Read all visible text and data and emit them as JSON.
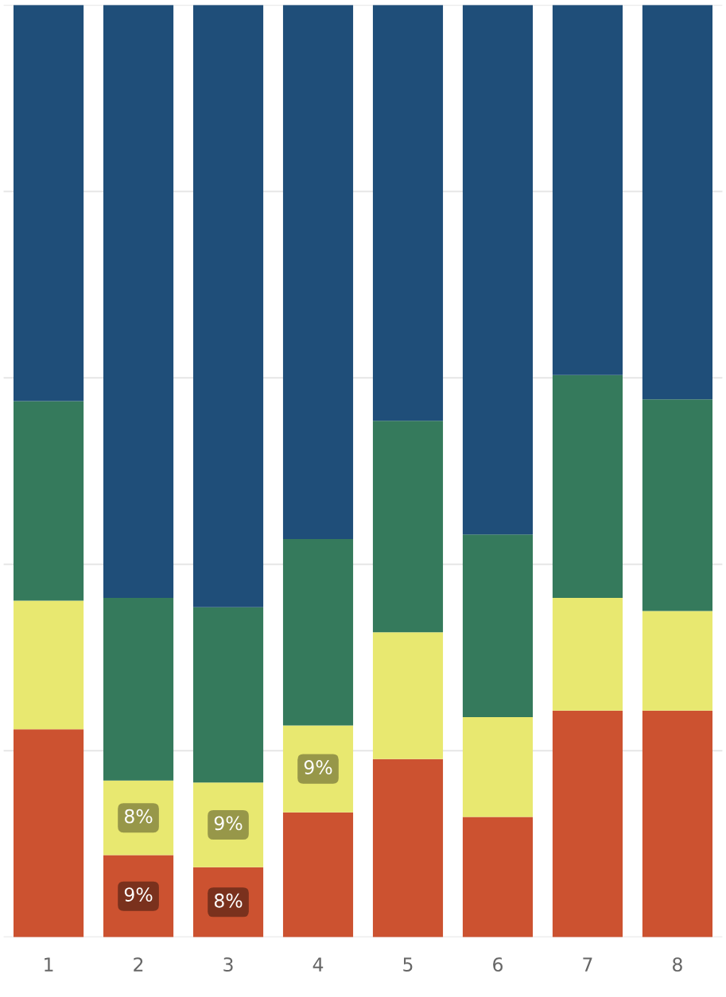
{
  "chart_data": {
    "type": "bar",
    "stacked": true,
    "grid": "y",
    "tick_labels": "x",
    "ylim": [
      0,
      100
    ],
    "yticks": [
      {
        "value": 0,
        "label": null
      },
      {
        "value": 20,
        "label": null
      },
      {
        "value": 40,
        "label": null
      },
      {
        "value": 60,
        "label": null
      },
      {
        "value": 80,
        "label": null
      },
      {
        "value": 100,
        "label": null
      }
    ],
    "categories": [
      "1",
      "2",
      "3",
      "4",
      "5",
      "6",
      "7",
      "8"
    ],
    "series": [
      {
        "color": "#cc5230",
        "values": [
          22.3,
          8.8,
          7.5,
          13.4,
          19.1,
          12.9,
          24.3,
          24.3
        ],
        "value_labels": [
          null,
          "9%",
          "8%",
          null,
          null,
          null,
          null,
          null
        ]
      },
      {
        "color": "#e8e870",
        "values": [
          13.8,
          8.0,
          9.1,
          9.3,
          13.6,
          10.7,
          12.1,
          10.7
        ],
        "value_labels": [
          null,
          "8%",
          "9%",
          "9%",
          null,
          null,
          null,
          null
        ]
      },
      {
        "color": "#357a5c",
        "values": [
          21.4,
          19.6,
          18.8,
          20.0,
          22.7,
          19.6,
          23.9,
          22.7
        ]
      },
      {
        "color": "#1f4e79",
        "values": [
          42.5,
          63.6,
          64.6,
          57.3,
          44.6,
          56.8,
          39.7,
          42.3
        ]
      }
    ]
  }
}
